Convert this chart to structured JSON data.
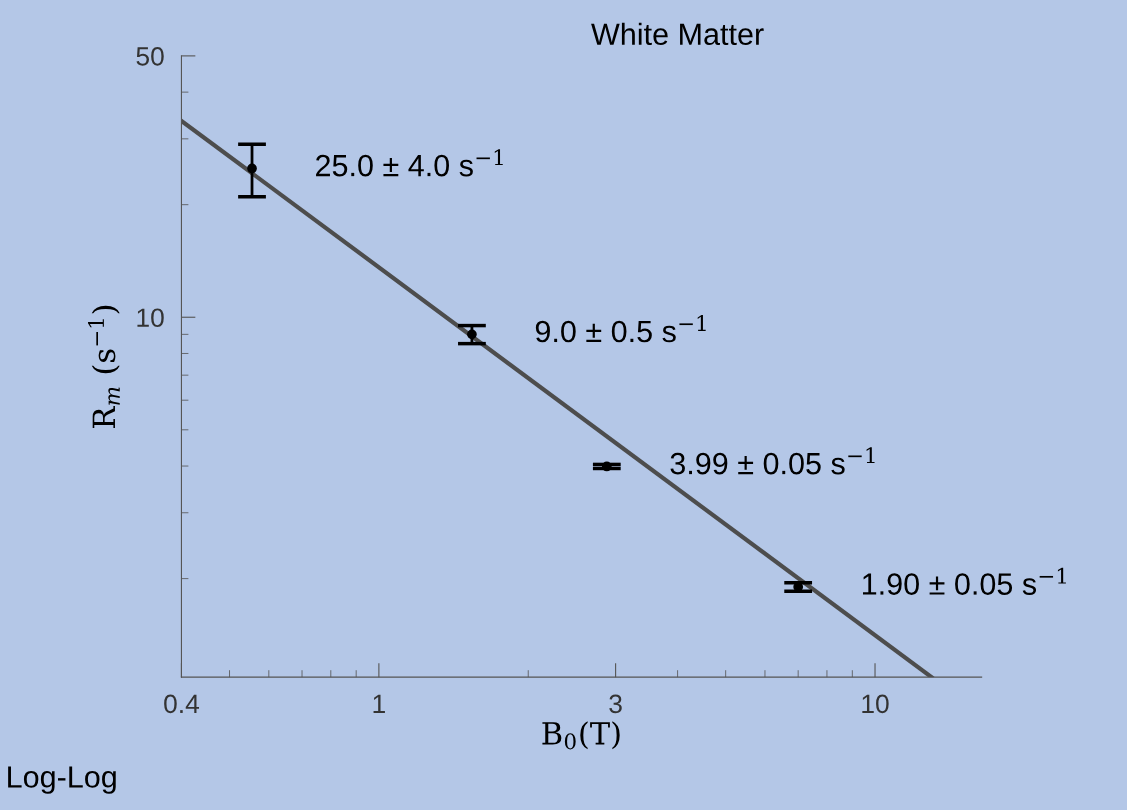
{
  "chart_data": {
    "type": "scatter",
    "title": "White Matter",
    "xlabel": "B$_{0}$(T)",
    "ylabel": "R$_{m}$ (s$^{−1}$)",
    "log": "xy",
    "xlim": [
      0.4,
      16.4
    ],
    "ylim": [
      1.09,
      50
    ],
    "xticks": [
      0.4,
      1,
      3,
      10
    ],
    "yticks": [
      10,
      50
    ],
    "grid": false,
    "legend": false,
    "series": [
      {
        "marker": "circle",
        "color": "#000000",
        "x": [
          0.555,
          1.54,
          2.88,
          7.0
        ],
        "values": [
          25.0,
          9.0,
          3.99,
          1.9
        ],
        "errors": [
          4.0,
          0.5,
          0.05,
          0.05
        ]
      },
      {
        "type": "line",
        "marker": "none",
        "color": "#4d4d4d",
        "line_style": "solid",
        "x": [
          0.4,
          13.0
        ],
        "values": [
          33.5,
          1.09
        ]
      }
    ],
    "annotations": [
      {
        "text": "25.0 ± 4.0 s$^{−1}$",
        "x": 0.555,
        "y": 25.0
      },
      {
        "text": "9.0 ± 0.5 s$^{−1}$",
        "x": 1.54,
        "y": 9.0
      },
      {
        "text": "3.99 ± 0.05 s$^{−1}$",
        "x": 2.88,
        "y": 3.99
      },
      {
        "text": "1.90 ± 0.05 s$^{−1}$",
        "x": 7.0,
        "y": 1.9
      },
      "Log-Log"
    ]
  }
}
